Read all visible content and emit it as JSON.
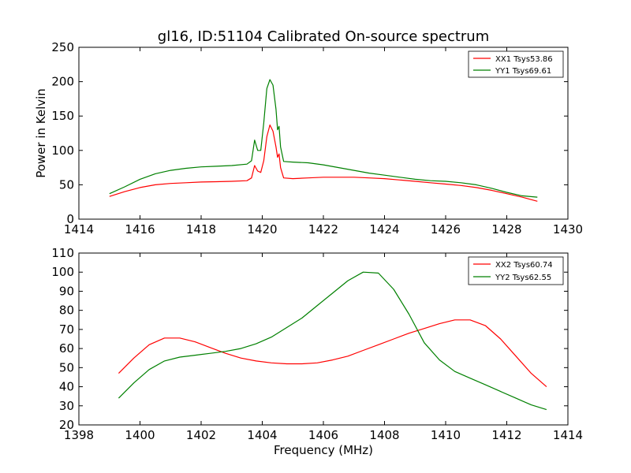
{
  "chart_data": [
    {
      "type": "line",
      "title": "gl16, ID:51104 Calibrated On-source spectrum",
      "xlabel": "",
      "ylabel": "Power in Kelvin",
      "xlim": [
        1414,
        1430
      ],
      "ylim": [
        0,
        250
      ],
      "xticks": [
        1414,
        1416,
        1418,
        1420,
        1422,
        1424,
        1426,
        1428,
        1430
      ],
      "yticks": [
        0,
        50,
        100,
        150,
        200,
        250
      ],
      "legend": "top-right",
      "grid": false,
      "series": [
        {
          "name": "XX1 Tsys53.86",
          "color": "#ff0000",
          "x": [
            1415.0,
            1415.5,
            1416.0,
            1416.5,
            1417.0,
            1417.5,
            1418.0,
            1418.5,
            1419.0,
            1419.5,
            1419.65,
            1419.75,
            1419.85,
            1419.95,
            1420.05,
            1420.15,
            1420.25,
            1420.35,
            1420.45,
            1420.5,
            1420.55,
            1420.6,
            1420.7,
            1421.0,
            1421.5,
            1422.0,
            1422.5,
            1423.0,
            1423.5,
            1424.0,
            1424.5,
            1425.0,
            1425.5,
            1426.0,
            1426.5,
            1427.0,
            1427.5,
            1428.0,
            1428.5,
            1429.0
          ],
          "values": [
            33,
            40,
            46,
            50,
            52,
            53,
            54,
            54.5,
            55,
            56,
            60,
            78,
            70,
            68,
            85,
            120,
            137,
            128,
            105,
            90,
            95,
            75,
            60,
            59,
            60,
            61,
            61,
            61,
            60,
            59,
            57,
            55,
            53,
            51,
            49,
            46,
            42,
            37,
            32,
            26
          ]
        },
        {
          "name": "YY1 Tsys69.61",
          "color": "#008000",
          "x": [
            1415.0,
            1415.5,
            1416.0,
            1416.5,
            1417.0,
            1417.5,
            1418.0,
            1418.5,
            1419.0,
            1419.5,
            1419.65,
            1419.75,
            1419.85,
            1419.95,
            1420.05,
            1420.15,
            1420.25,
            1420.35,
            1420.45,
            1420.5,
            1420.55,
            1420.6,
            1420.7,
            1421.0,
            1421.5,
            1422.0,
            1422.5,
            1423.0,
            1423.5,
            1424.0,
            1424.5,
            1425.0,
            1425.5,
            1426.0,
            1426.5,
            1427.0,
            1427.5,
            1428.0,
            1428.5,
            1429.0
          ],
          "values": [
            37,
            47,
            58,
            66,
            71,
            74,
            76,
            77,
            78,
            80,
            85,
            115,
            100,
            100,
            140,
            190,
            203,
            195,
            160,
            130,
            135,
            105,
            84,
            83,
            82,
            79,
            75,
            71,
            67,
            64,
            61,
            58,
            56,
            55,
            53,
            50,
            45,
            39,
            34,
            32
          ]
        }
      ]
    },
    {
      "type": "line",
      "title": "",
      "xlabel": "Frequency (MHz)",
      "ylabel": "",
      "xlim": [
        1398,
        1414
      ],
      "ylim": [
        20,
        110
      ],
      "xticks": [
        1398,
        1400,
        1402,
        1404,
        1406,
        1408,
        1410,
        1412,
        1414
      ],
      "yticks": [
        20,
        30,
        40,
        50,
        60,
        70,
        80,
        90,
        100,
        110
      ],
      "legend": "top-right",
      "grid": false,
      "series": [
        {
          "name": "XX2 Tsys60.74",
          "color": "#ff0000",
          "x": [
            1399.3,
            1399.8,
            1400.3,
            1400.8,
            1401.3,
            1401.8,
            1402.3,
            1402.8,
            1403.3,
            1403.8,
            1404.3,
            1404.8,
            1405.3,
            1405.8,
            1406.3,
            1406.8,
            1407.3,
            1407.8,
            1408.3,
            1408.8,
            1409.3,
            1409.8,
            1410.3,
            1410.8,
            1411.3,
            1411.8,
            1412.3,
            1412.8,
            1413.3
          ],
          "values": [
            47,
            55,
            62,
            65.5,
            65.5,
            63.5,
            60.5,
            57.5,
            55,
            53.5,
            52.5,
            52,
            52,
            52.5,
            54,
            56,
            59,
            62,
            65,
            68,
            70.5,
            73,
            75,
            75,
            72,
            65,
            56,
            47,
            40
          ]
        },
        {
          "name": "YY2 Tsys62.55",
          "color": "#008000",
          "x": [
            1399.3,
            1399.8,
            1400.3,
            1400.8,
            1401.3,
            1401.8,
            1402.3,
            1402.8,
            1403.3,
            1403.8,
            1404.3,
            1404.8,
            1405.3,
            1405.8,
            1406.3,
            1406.8,
            1407.3,
            1407.8,
            1408.3,
            1408.8,
            1409.3,
            1409.8,
            1410.3,
            1410.8,
            1411.3,
            1411.8,
            1412.3,
            1412.8,
            1413.3
          ],
          "values": [
            34,
            42,
            49,
            53.5,
            55.5,
            56.5,
            57.5,
            58.5,
            60,
            62.5,
            66,
            71,
            76,
            82.5,
            89,
            95.5,
            100,
            99.5,
            91,
            78,
            63,
            54,
            48,
            44.5,
            41,
            37.5,
            34,
            30.5,
            28
          ]
        }
      ]
    }
  ]
}
